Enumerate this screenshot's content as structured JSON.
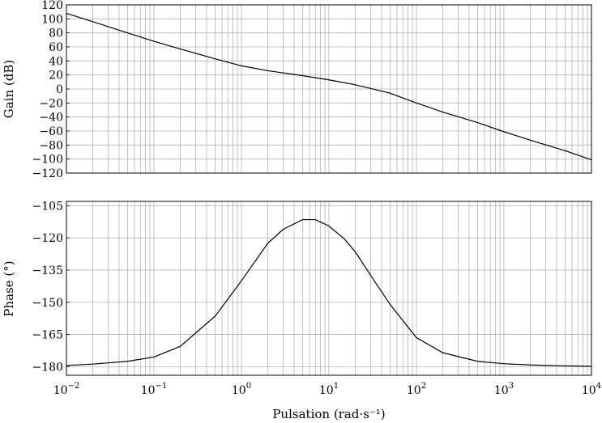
{
  "chart_data": [
    {
      "type": "line",
      "panel": "gain",
      "ylabel": "Gain (dB)",
      "xscale": "log",
      "xlim": [
        0.01,
        10000
      ],
      "ylim": [
        -120,
        120
      ],
      "yticks": [
        120,
        100,
        80,
        60,
        40,
        20,
        0,
        -20,
        -40,
        -60,
        -80,
        -100,
        -120
      ],
      "ytick_labels": [
        "120",
        "100",
        "80",
        "60",
        "40",
        "20",
        "0",
        "−20",
        "−40",
        "−60",
        "−80",
        "−100",
        "−120"
      ],
      "grid": true,
      "x": [
        0.01,
        0.02,
        0.05,
        0.1,
        0.2,
        0.5,
        1,
        2,
        5,
        10,
        20,
        50,
        100,
        200,
        500,
        1000,
        2000,
        5000,
        10000
      ],
      "y": [
        108,
        96,
        80,
        68,
        57,
        43,
        33,
        26,
        19,
        13,
        6,
        -6,
        -20,
        -33,
        -48,
        -61,
        -73,
        -88,
        -101
      ]
    },
    {
      "type": "line",
      "panel": "phase",
      "xlabel": "Pulsation (rad·s⁻¹)",
      "ylabel": "Phase (°)",
      "xscale": "log",
      "xlim": [
        0.01,
        10000
      ],
      "ylim": [
        -184,
        -103
      ],
      "yticks": [
        -105,
        -120,
        -135,
        -150,
        -165,
        -180
      ],
      "ytick_labels": [
        "−105",
        "−120",
        "−135",
        "−150",
        "−165",
        "−180"
      ],
      "xticks": [
        0.01,
        0.1,
        1,
        10,
        100,
        1000,
        10000
      ],
      "xtick_labels": [
        {
          "base": "10",
          "exp": "−2"
        },
        {
          "base": "10",
          "exp": "−1"
        },
        {
          "base": "10",
          "exp": "0"
        },
        {
          "base": "10",
          "exp": "1"
        },
        {
          "base": "10",
          "exp": "2"
        },
        {
          "base": "10",
          "exp": "3"
        },
        {
          "base": "10",
          "exp": "4"
        }
      ],
      "grid": true,
      "x": [
        0.01,
        0.02,
        0.05,
        0.1,
        0.2,
        0.5,
        1,
        2,
        3,
        5,
        7,
        10,
        15,
        20,
        30,
        50,
        100,
        200,
        500,
        1000,
        2000,
        5000,
        10000
      ],
      "y": [
        -179.4,
        -178.8,
        -177.5,
        -175.5,
        -170.5,
        -156.5,
        -140,
        -122.5,
        -116,
        -111.5,
        -111.5,
        -114.5,
        -120.5,
        -126.5,
        -137.5,
        -151,
        -166.5,
        -173.5,
        -177.5,
        -178.6,
        -179.2,
        -179.6,
        -179.8
      ]
    }
  ]
}
